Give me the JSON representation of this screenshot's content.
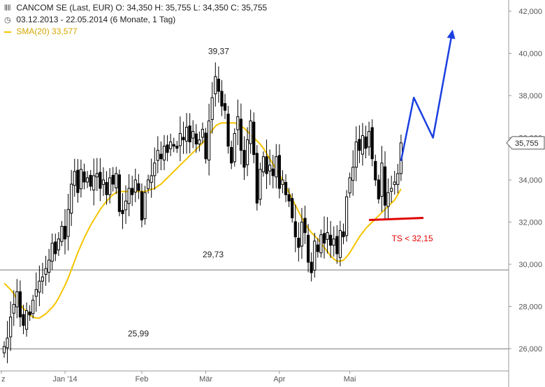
{
  "header": {
    "title_line": "CANCOM SE (Last, EUR)  O: 34,350  H: 35,755  L: 34,350  C: 35,755",
    "range_line": "03.12.2013 - 22.05.2014 (6 Monate, 1 Tag)",
    "sma_label": "SMA(20)",
    "sma_value": "33,577",
    "chart_icon": "candlestick-icon",
    "calendar_icon": "clock-icon"
  },
  "colors": {
    "candle": "#000000",
    "sma": "#f5c400",
    "projection": "#1a3fe0",
    "stop": "#e00000",
    "grid": "#888888"
  },
  "chart_data": {
    "type": "candlestick",
    "instrument": "CANCOM SE",
    "currency": "EUR",
    "ylim": [
      25.2,
      42.6
    ],
    "y_ticks": [
      "26,000",
      "28,000",
      "30,000",
      "32,000",
      "34,000",
      "36,000",
      "38,000",
      "40,000",
      "42,000"
    ],
    "y_tick_values": [
      26,
      28,
      30,
      32,
      34,
      36,
      38,
      40,
      42
    ],
    "x_tick_labels": [
      {
        "label": "z",
        "index": 0
      },
      {
        "label": "Jan '14",
        "index": 19
      },
      {
        "label": "Feb",
        "index": 43
      },
      {
        "label": "Mär",
        "index": 63
      },
      {
        "label": "Apr",
        "index": 86
      },
      {
        "label": "Mai",
        "index": 108
      }
    ],
    "last_price_label": "35,755",
    "last_price": 35.755,
    "horizontal_lines": [
      {
        "value": 29.73,
        "label": "29,73"
      },
      {
        "value": 25.99,
        "label": "25,99"
      }
    ],
    "annotations": [
      {
        "text": "39,37",
        "index": 67,
        "value": 39.37
      }
    ],
    "stop_level": {
      "label": "TS < 32,15",
      "value": 32.15,
      "from_index": 114,
      "to_index": 131
    },
    "projection": {
      "index": [
        124,
        128,
        134,
        140
      ],
      "value": [
        34.9,
        37.9,
        36.0,
        41.0
      ]
    },
    "close": [
      26.1,
      26.5,
      27.5,
      28.1,
      28.7,
      27.5,
      27.1,
      27.8,
      27.6,
      28.3,
      28.8,
      29.2,
      29.4,
      29.8,
      30.2,
      31.0,
      30.5,
      31.2,
      31.8,
      31.2,
      32.6,
      33.8,
      34.4,
      33.4,
      34.5,
      33.9,
      34.1,
      33.7,
      34.2,
      34.3,
      33.6,
      34.0,
      33.3,
      34.1,
      33.8,
      34.3,
      32.5,
      32.4,
      33.0,
      33.6,
      33.3,
      34.0,
      33.5,
      32.1,
      33.4,
      34.0,
      34.2,
      34.8,
      35.4,
      35.0,
      35.6,
      35.3,
      35.8,
      35.6,
      35.5,
      36.2,
      35.9,
      36.5,
      35.8,
      36.3,
      35.7,
      35.9,
      36.4,
      35.0,
      36.8,
      37.9,
      38.9,
      38.2,
      37.5,
      37.3,
      35.6,
      34.8,
      36.2,
      37.0,
      35.4,
      34.6,
      35.9,
      36.8,
      35.2,
      32.9,
      34.5,
      35.1,
      34.3,
      34.7,
      34.2,
      35.1,
      33.6,
      34.0,
      33.3,
      33.0,
      32.2,
      31.3,
      30.8,
      32.0,
      31.5,
      30.1,
      29.6,
      31.1,
      30.6,
      31.4,
      31.0,
      31.5,
      30.9,
      31.2,
      30.5,
      31.6,
      31.3,
      33.2,
      34.1,
      34.6,
      35.8,
      35.4,
      36.1,
      35.5,
      36.3,
      35.0,
      34.0,
      33.1,
      34.8,
      32.8,
      33.4,
      33.6,
      33.9,
      34.3,
      35.755
    ],
    "sma20": [
      29.1,
      28.95,
      28.8,
      28.6,
      28.35,
      28.1,
      27.9,
      27.75,
      27.6,
      27.5,
      27.45,
      27.45,
      27.55,
      27.65,
      27.8,
      27.95,
      28.15,
      28.4,
      28.7,
      29.0,
      29.35,
      29.75,
      30.15,
      30.55,
      30.9,
      31.25,
      31.55,
      31.85,
      32.1,
      32.35,
      32.6,
      32.8,
      33.0,
      33.15,
      33.3,
      33.4,
      33.45,
      33.45,
      33.45,
      33.45,
      33.45,
      33.45,
      33.45,
      33.45,
      33.45,
      33.5,
      33.55,
      33.6,
      33.7,
      33.8,
      33.95,
      34.1,
      34.25,
      34.4,
      34.55,
      34.7,
      34.85,
      35.0,
      35.15,
      35.3,
      35.45,
      35.6,
      35.75,
      35.95,
      36.15,
      36.35,
      36.55,
      36.65,
      36.7,
      36.7,
      36.7,
      36.7,
      36.7,
      36.65,
      36.55,
      36.45,
      36.3,
      36.15,
      36.0,
      35.85,
      35.7,
      35.5,
      35.25,
      35.0,
      34.75,
      34.5,
      34.25,
      34.0,
      33.7,
      33.4,
      33.1,
      32.8,
      32.5,
      32.2,
      31.95,
      31.7,
      31.5,
      31.35,
      31.2,
      31.0,
      30.8,
      30.6,
      30.4,
      30.25,
      30.15,
      30.15,
      30.2,
      30.35,
      30.55,
      30.8,
      31.05,
      31.3,
      31.5,
      31.7,
      31.85,
      32.0,
      32.15,
      32.3,
      32.45,
      32.6,
      32.75,
      32.9,
      33.05,
      33.3,
      33.577
    ]
  }
}
